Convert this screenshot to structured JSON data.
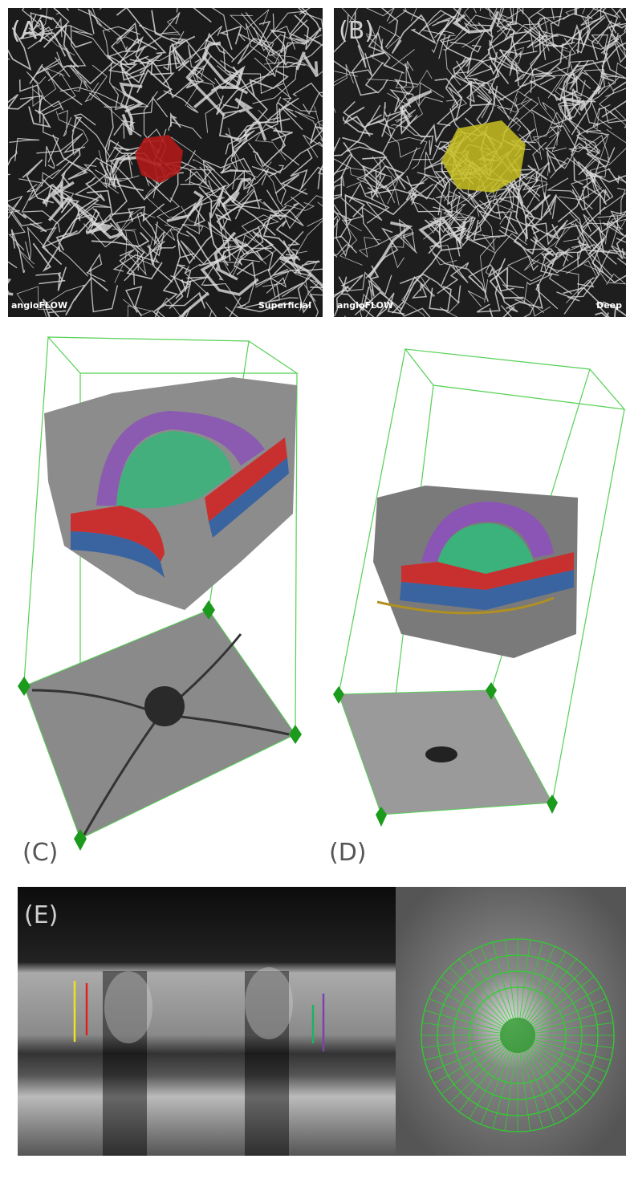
{
  "panels": [
    {
      "label": "(A)",
      "brand": "angioFLOW",
      "layer": "Superficial"
    },
    {
      "label": "(B)",
      "brand": "angioFLOW",
      "layer": "Deep"
    },
    {
      "label": "(C)"
    },
    {
      "label": "(D)"
    },
    {
      "label": "(E)"
    }
  ]
}
